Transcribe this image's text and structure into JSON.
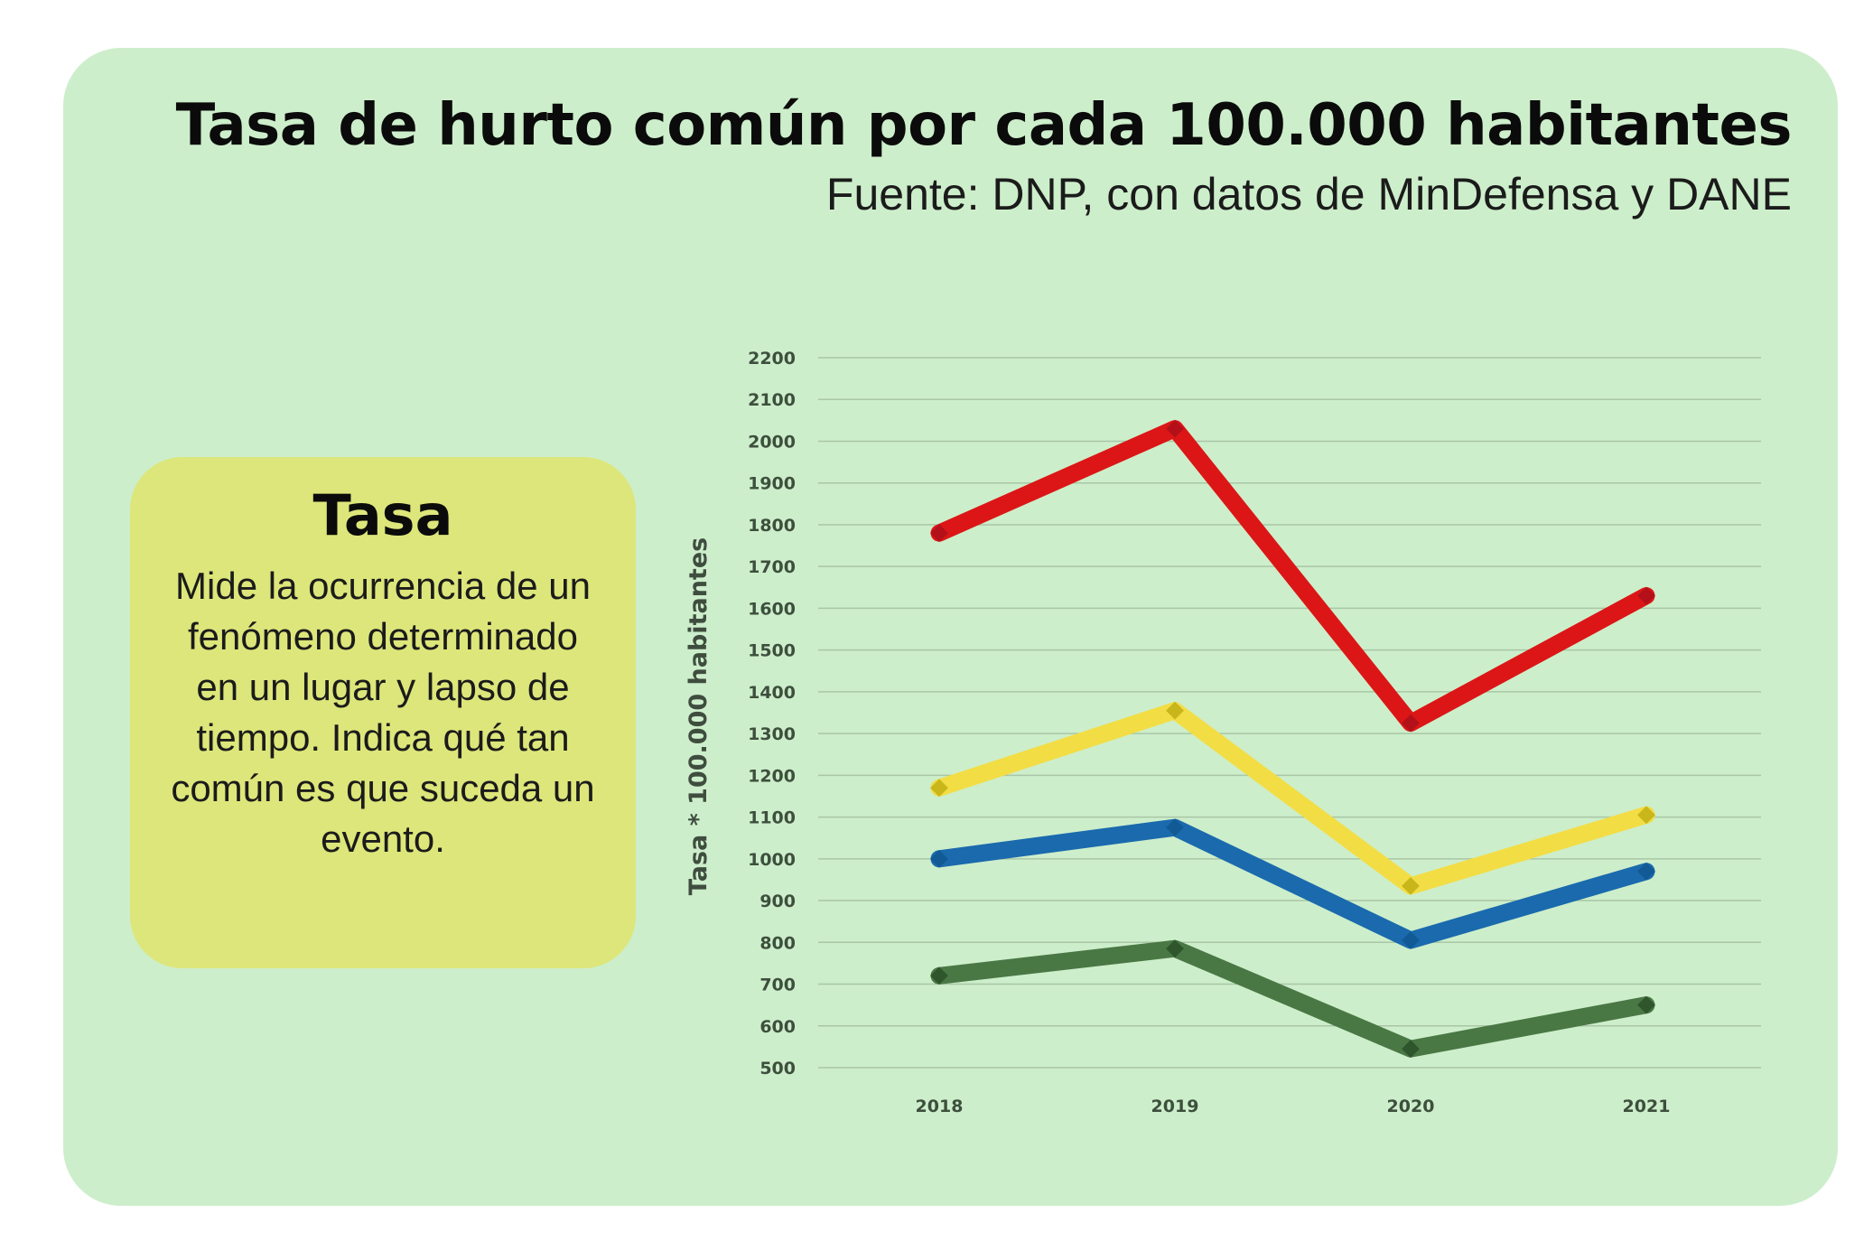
{
  "card": {
    "title": "Tasa de hurto común por cada 100.000 habitantes",
    "subtitle": "Fuente: DNP, con datos de MinDefensa y DANE"
  },
  "info_box": {
    "title": "Tasa",
    "body": "Mide la ocurrencia de un fenómeno determinado en un lugar y lapso de tiempo. Indica qué tan común es que suceda un evento."
  },
  "colors": {
    "card_background": "#cdeecb",
    "info_box_background": "#dde67a",
    "gridline": "#a9c6a6"
  },
  "chart_data": {
    "type": "line",
    "title": "Tasa de hurto común por cada 100.000 habitantes",
    "ylabel": "Tasa * 100.000 habitantes",
    "xlabel": "",
    "categories": [
      "2018",
      "2019",
      "2020",
      "2021"
    ],
    "ylim": [
      500,
      2200
    ],
    "yticks": [
      "2200",
      "2100",
      "2000",
      "1900",
      "1800",
      "1700",
      "1600",
      "1500",
      "1400",
      "1300",
      "1200",
      "1100",
      "1000",
      "900",
      "800",
      "700",
      "600",
      "500"
    ],
    "grid": true,
    "legend": "none",
    "series": [
      {
        "color": "#dc1616",
        "marker_color": "#b3101a",
        "values": [
          1780,
          2030,
          1325,
          1630
        ]
      },
      {
        "color": "#f2dd45",
        "marker_color": "#c8b61a",
        "values": [
          1170,
          1355,
          935,
          1105
        ]
      },
      {
        "color": "#1a6aad",
        "marker_color": "#125a96",
        "values": [
          1000,
          1075,
          805,
          970
        ]
      },
      {
        "color": "#4a7845",
        "marker_color": "#2f552d",
        "values": [
          720,
          785,
          545,
          650
        ]
      }
    ]
  }
}
